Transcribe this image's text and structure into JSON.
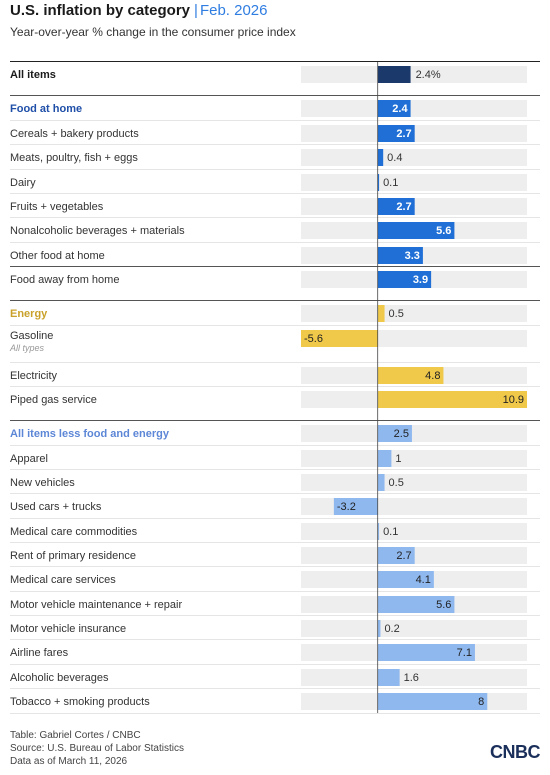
{
  "header": {
    "title": "U.S. inflation by category",
    "separator": "|",
    "date": "Feb. 2026",
    "subtitle": "Year-over-year % change in the consumer price index"
  },
  "colors": {
    "all_items": "#1b3a6b",
    "food": "#1f6fd6",
    "energy": "#f0c94a",
    "core": "#8fb8ef",
    "track": "#eeeeee",
    "food_heading": "#1f4fa8",
    "energy_heading": "#c9a12a",
    "core_heading": "#5c86d6"
  },
  "chart_data": {
    "type": "bar",
    "orientation": "horizontal",
    "xlim": [
      -5.6,
      10.9
    ],
    "rows": [
      {
        "label": "All items",
        "value": 2.4,
        "value_label": "2.4%",
        "group": "all_items",
        "heading": true
      },
      {
        "label": "Food at home",
        "value": 2.4,
        "value_label": "2.4",
        "group": "food",
        "heading": true
      },
      {
        "label": "Cereals + bakery products",
        "value": 2.7,
        "value_label": "2.7",
        "group": "food"
      },
      {
        "label": "Meats, poultry, fish + eggs",
        "value": 0.4,
        "value_label": "0.4",
        "group": "food"
      },
      {
        "label": "Dairy",
        "value": 0.1,
        "value_label": "0.1",
        "group": "food"
      },
      {
        "label": "Fruits + vegetables",
        "value": 2.7,
        "value_label": "2.7",
        "group": "food"
      },
      {
        "label": "Nonalcoholic beverages + materials",
        "value": 5.6,
        "value_label": "5.6",
        "group": "food"
      },
      {
        "label": "Other food at home",
        "value": 3.3,
        "value_label": "3.3",
        "group": "food"
      },
      {
        "label": "Food away from home",
        "value": 3.9,
        "value_label": "3.9",
        "group": "food"
      },
      {
        "label": "Energy",
        "value": 0.5,
        "value_label": "0.5",
        "group": "energy",
        "heading": true
      },
      {
        "label": "Gasoline",
        "sublabel": "All types",
        "value": -5.6,
        "value_label": "-5.6",
        "group": "energy"
      },
      {
        "label": "Electricity",
        "value": 4.8,
        "value_label": "4.8",
        "group": "energy"
      },
      {
        "label": "Piped gas service",
        "value": 10.9,
        "value_label": "10.9",
        "group": "energy"
      },
      {
        "label": "All items less food and energy",
        "value": 2.5,
        "value_label": "2.5",
        "group": "core",
        "heading": true
      },
      {
        "label": "Apparel",
        "value": 1,
        "value_label": "1",
        "group": "core"
      },
      {
        "label": "New vehicles",
        "value": 0.5,
        "value_label": "0.5",
        "group": "core"
      },
      {
        "label": "Used cars + trucks",
        "value": -3.2,
        "value_label": "-3.2",
        "group": "core"
      },
      {
        "label": "Medical care commodities",
        "value": 0.1,
        "value_label": "0.1",
        "group": "core"
      },
      {
        "label": "Rent of primary residence",
        "value": 2.7,
        "value_label": "2.7",
        "group": "core"
      },
      {
        "label": "Medical care services",
        "value": 4.1,
        "value_label": "4.1",
        "group": "core"
      },
      {
        "label": "Motor vehicle maintenance + repair",
        "value": 5.6,
        "value_label": "5.6",
        "group": "core"
      },
      {
        "label": "Motor vehicle insurance",
        "value": 0.2,
        "value_label": "0.2",
        "group": "core"
      },
      {
        "label": "Airline fares",
        "value": 7.1,
        "value_label": "7.1",
        "group": "core"
      },
      {
        "label": "Alcoholic beverages",
        "value": 1.6,
        "value_label": "1.6",
        "group": "core"
      },
      {
        "label": "Tobacco + smoking products",
        "value": 8,
        "value_label": "8",
        "group": "core"
      }
    ]
  },
  "footer": {
    "credit": "Table: Gabriel Cortes / CNBC",
    "source": "Source: U.S. Bureau of Labor Statistics",
    "data_as_of": "Data as of March 11, 2026"
  },
  "logo": {
    "text": "CNBC"
  }
}
